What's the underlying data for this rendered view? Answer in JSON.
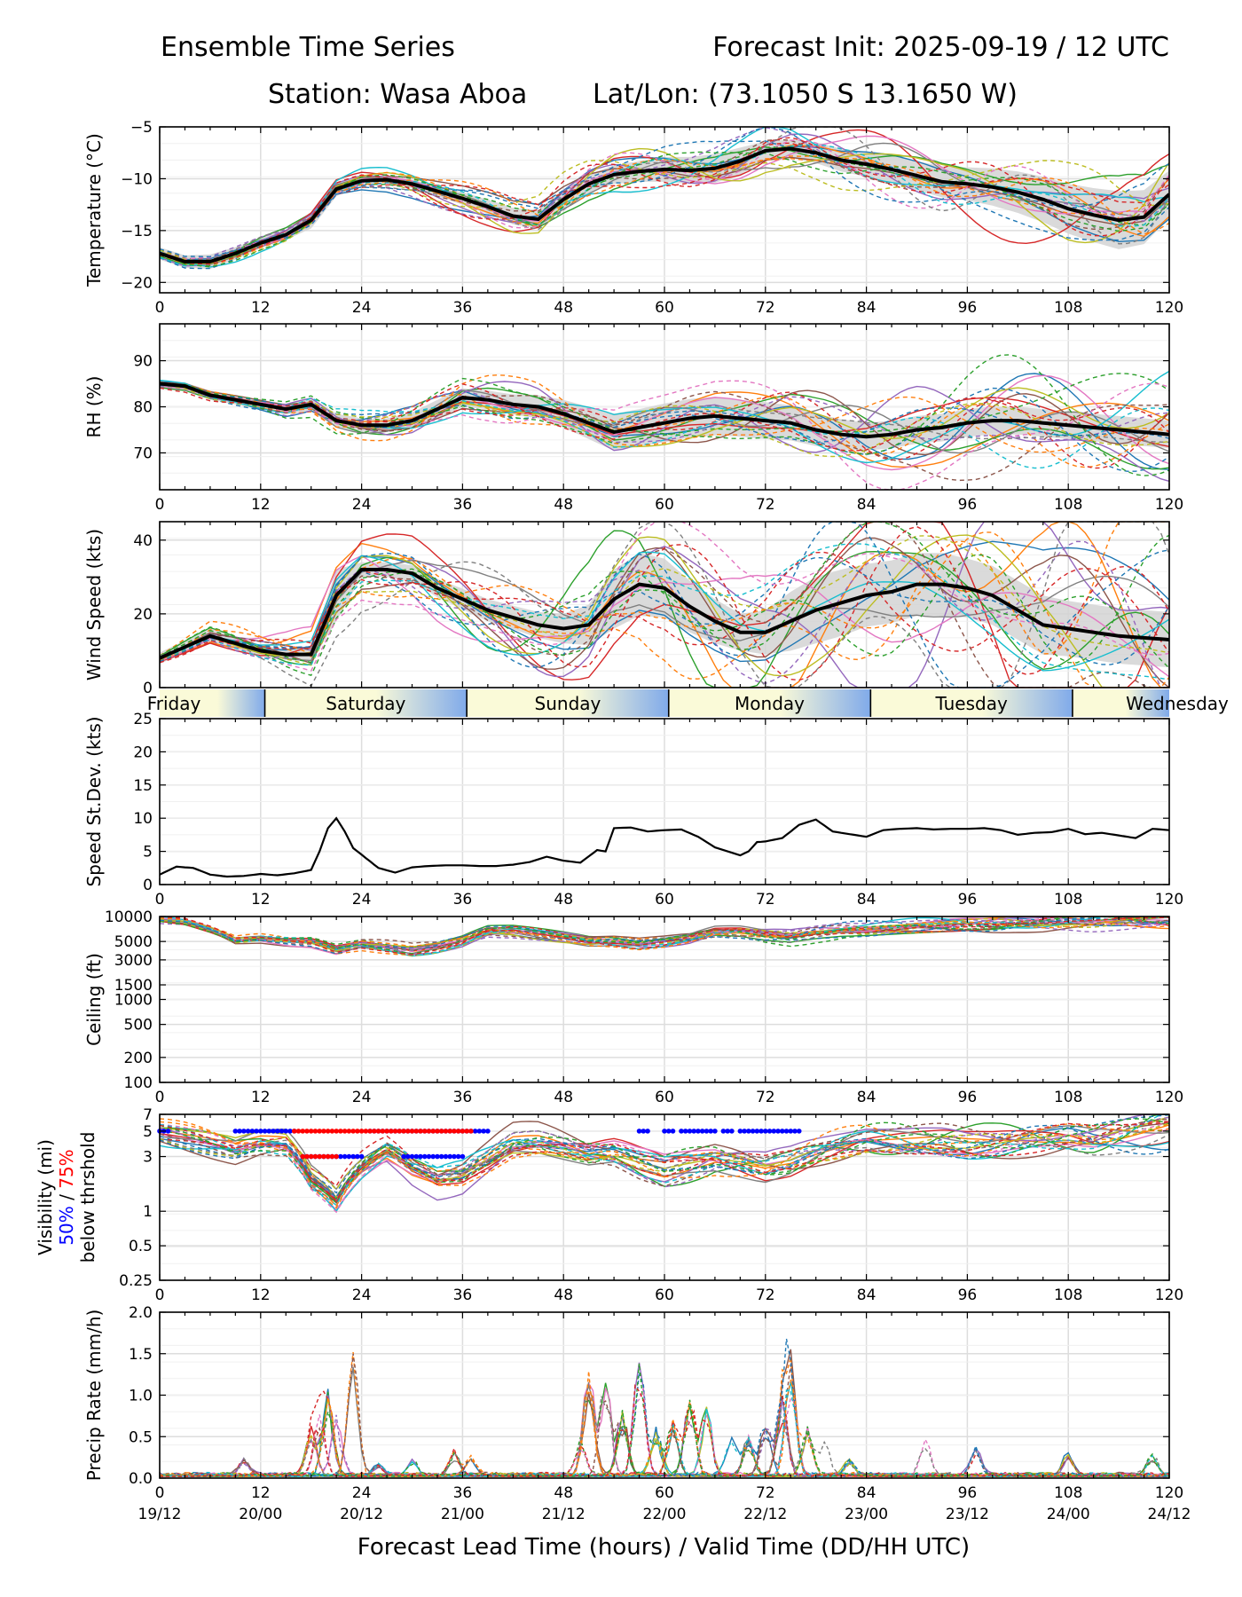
{
  "header": {
    "title_left": "Ensemble Time Series",
    "title_right": "Forecast Init: 2025-09-19 / 12 UTC",
    "station": "Station: Wasa Aboa",
    "latlon": "Lat/Lon: (73.1050 S 13.1650 W)"
  },
  "xaxis": {
    "lead_ticks": [
      "0",
      "12",
      "24",
      "36",
      "48",
      "60",
      "72",
      "84",
      "96",
      "108",
      "120"
    ],
    "valid_ticks": [
      "19/12",
      "20/00",
      "20/12",
      "21/00",
      "21/12",
      "22/00",
      "22/12",
      "23/00",
      "23/12",
      "24/00",
      "24/12"
    ],
    "label": "Forecast Lead Time (hours) / Valid Time (DD/HH UTC)"
  },
  "days": {
    "labels": [
      "Friday",
      "Saturday",
      "Sunday",
      "Monday",
      "Tuesday",
      "Wednesday"
    ],
    "boundaries_hours": [
      12.5,
      36.5,
      60.5,
      84.5,
      108.5
    ]
  },
  "colors": {
    "mean": "#000000",
    "spread": "#d3d3d3",
    "members": [
      "#1f77b4",
      "#ff7f0e",
      "#2ca02c",
      "#d62728",
      "#9467bd",
      "#8c564b",
      "#e377c2",
      "#7f7f7f",
      "#bcbd22",
      "#17becf"
    ],
    "vis50": "#0000ff",
    "vis75": "#ff0000",
    "day_light": "#fafad8",
    "day_dark": "#80aaea"
  },
  "chart_data": [
    {
      "id": "temperature",
      "type": "line",
      "ylabel": "Temperature (°C)",
      "ylim": [
        -21,
        -5
      ],
      "yticks": [
        -5,
        -10,
        -15,
        -20
      ],
      "scale": "linear",
      "x": [
        0,
        3,
        6,
        9,
        12,
        15,
        18,
        21,
        24,
        27,
        30,
        33,
        36,
        39,
        42,
        45,
        48,
        51,
        54,
        57,
        60,
        63,
        66,
        69,
        72,
        75,
        78,
        81,
        84,
        87,
        90,
        93,
        96,
        99,
        102,
        105,
        108,
        111,
        114,
        117,
        120
      ],
      "mean": [
        -17.2,
        -18.0,
        -18.0,
        -17.2,
        -16.2,
        -15.4,
        -14.0,
        -11.0,
        -10.2,
        -10.1,
        -10.5,
        -11.2,
        -11.9,
        -12.7,
        -13.6,
        -13.9,
        -12.0,
        -10.5,
        -9.6,
        -9.3,
        -9.1,
        -9.2,
        -9.0,
        -8.3,
        -7.3,
        -7.1,
        -7.5,
        -8.2,
        -8.6,
        -9.1,
        -9.7,
        -10.3,
        -10.5,
        -10.8,
        -11.3,
        -12.0,
        -12.9,
        -13.5,
        -14.0,
        -13.7,
        -11.5
      ],
      "spread_halfwidth": [
        0.6,
        0.6,
        0.7,
        0.6,
        0.5,
        0.5,
        0.8,
        0.7,
        0.3,
        0.3,
        0.4,
        0.5,
        0.6,
        0.7,
        0.8,
        0.9,
        1.0,
        0.9,
        0.9,
        1.0,
        1.2,
        1.3,
        1.4,
        1.3,
        0.9,
        0.9,
        1.0,
        1.1,
        1.2,
        1.3,
        1.4,
        1.5,
        1.6,
        1.8,
        2.0,
        2.2,
        2.4,
        2.6,
        2.8,
        2.6,
        2.3
      ],
      "member_noise": 1.6,
      "member_growth": 1.9,
      "show_mean": true
    },
    {
      "id": "rh",
      "type": "line",
      "ylabel": "RH (%)",
      "ylim": [
        62,
        98
      ],
      "yticks": [
        70,
        80,
        90
      ],
      "scale": "linear",
      "x": [
        0,
        3,
        6,
        9,
        12,
        15,
        18,
        21,
        24,
        27,
        30,
        33,
        36,
        39,
        42,
        45,
        48,
        51,
        54,
        57,
        60,
        63,
        66,
        69,
        72,
        75,
        78,
        81,
        84,
        87,
        90,
        93,
        96,
        99,
        102,
        105,
        108,
        111,
        114,
        117,
        120
      ],
      "mean": [
        85,
        84.5,
        82.5,
        81.5,
        80.5,
        79.5,
        80.5,
        77,
        76,
        76,
        77,
        79.5,
        82,
        81.5,
        80.5,
        80,
        78.5,
        76.5,
        74.5,
        75.5,
        76.5,
        77.5,
        78,
        77.5,
        77,
        76.5,
        75,
        74,
        73.5,
        74,
        75,
        75.5,
        76.5,
        77,
        77,
        76.5,
        76,
        75.5,
        75,
        74.5,
        74
      ],
      "spread_halfwidth": [
        0.8,
        0.8,
        1.0,
        1.0,
        1.0,
        1.2,
        1.5,
        1.5,
        1.5,
        1.5,
        1.8,
        2.0,
        2.0,
        2.0,
        2.2,
        2.5,
        3.0,
        3.5,
        4.0,
        4.0,
        4.2,
        4.2,
        4.2,
        4.0,
        4.0,
        3.8,
        3.5,
        3.3,
        3.0,
        3.0,
        3.0,
        3.0,
        3.0,
        3.0,
        3.0,
        3.0,
        3.0,
        3.0,
        3.0,
        3.0,
        3.0
      ],
      "member_noise": 3.0,
      "member_growth": 3.5,
      "show_mean": true
    },
    {
      "id": "wind",
      "type": "line",
      "ylabel": "Wind Speed (kts)",
      "ylim": [
        0,
        45
      ],
      "yticks": [
        0,
        20,
        40
      ],
      "scale": "linear",
      "x": [
        0,
        3,
        6,
        9,
        12,
        15,
        18,
        21,
        24,
        27,
        30,
        33,
        36,
        39,
        42,
        45,
        48,
        51,
        54,
        57,
        60,
        63,
        66,
        69,
        72,
        75,
        78,
        81,
        84,
        87,
        90,
        93,
        96,
        99,
        102,
        105,
        108,
        111,
        114,
        117,
        120
      ],
      "mean": [
        8,
        11,
        14,
        12,
        10,
        9,
        9,
        25,
        32,
        32,
        31,
        27,
        24,
        21,
        19,
        17,
        16,
        17,
        24,
        28,
        27,
        22,
        18,
        15,
        15,
        18,
        21,
        23,
        25,
        26,
        28,
        28,
        27,
        25,
        21,
        17,
        16,
        15,
        14,
        13.5,
        13
      ],
      "spread_halfwidth": [
        1.5,
        1.8,
        2.0,
        1.8,
        1.5,
        1.5,
        2.0,
        7.0,
        2.0,
        2.0,
        2.2,
        2.5,
        2.8,
        3.0,
        3.2,
        3.5,
        4.0,
        5.5,
        8.0,
        8.5,
        8.0,
        7.0,
        6.0,
        5.0,
        6.0,
        8.0,
        9.0,
        9.0,
        8.5,
        8.5,
        8.5,
        8.5,
        8.0,
        8.0,
        8.0,
        8.0,
        7.5,
        7.5,
        7.5,
        7.5,
        7.5
      ],
      "member_noise": 5.0,
      "member_growth": 6.0,
      "show_mean": true
    },
    {
      "id": "wind_sd",
      "type": "line",
      "ylabel": "Speed St.Dev. (kts)",
      "ylim": [
        0,
        25
      ],
      "yticks": [
        0,
        5,
        10,
        15,
        20,
        25
      ],
      "scale": "linear",
      "x": [
        0,
        2,
        4,
        6,
        8,
        10,
        12,
        14,
        16,
        18,
        19,
        20,
        21,
        22,
        23,
        24,
        26,
        28,
        30,
        32,
        34,
        36,
        38,
        40,
        42,
        44,
        46,
        48,
        50,
        52,
        53,
        54,
        56,
        58,
        60,
        62,
        64,
        66,
        68,
        69,
        70,
        71,
        72,
        74,
        76,
        78,
        80,
        82,
        84,
        86,
        88,
        90,
        92,
        94,
        96,
        98,
        100,
        102,
        104,
        106,
        108,
        110,
        112,
        114,
        116,
        118,
        120
      ],
      "mean": [
        1.5,
        2.7,
        2.5,
        1.5,
        1.2,
        1.3,
        1.6,
        1.4,
        1.7,
        2.2,
        5.0,
        8.5,
        10.0,
        8.0,
        5.5,
        4.5,
        2.5,
        1.8,
        2.6,
        2.8,
        2.9,
        2.9,
        2.8,
        2.8,
        3.0,
        3.4,
        4.2,
        3.6,
        3.3,
        5.2,
        5.0,
        8.5,
        8.6,
        8.0,
        8.2,
        8.3,
        7.2,
        5.6,
        4.8,
        4.4,
        5.0,
        6.4,
        6.5,
        7.0,
        9.0,
        9.8,
        8.0,
        7.6,
        7.2,
        8.2,
        8.4,
        8.5,
        8.3,
        8.4,
        8.4,
        8.5,
        8.2,
        7.5,
        7.8,
        7.9,
        8.4,
        7.6,
        7.8,
        7.4,
        7.0,
        8.4,
        8.2
      ],
      "show_members": false,
      "show_mean": true
    },
    {
      "id": "ceiling",
      "type": "line",
      "ylabel": "Ceiling (ft)",
      "ylim": [
        100,
        10000
      ],
      "yticks": [
        100,
        200,
        500,
        1000,
        1500,
        3000,
        5000,
        10000
      ],
      "scale": "log",
      "x": [
        0,
        3,
        6,
        9,
        12,
        15,
        18,
        21,
        24,
        27,
        30,
        33,
        36,
        39,
        42,
        45,
        48,
        51,
        54,
        57,
        60,
        63,
        66,
        69,
        72,
        75,
        78,
        81,
        84,
        87,
        90,
        93,
        96,
        99,
        102,
        105,
        108,
        111,
        114,
        117,
        120
      ],
      "mean": [
        9000,
        8500,
        7000,
        5200,
        5500,
        5200,
        5000,
        4000,
        4600,
        4200,
        3800,
        4200,
        5000,
        6500,
        6500,
        6000,
        5500,
        5000,
        5000,
        4700,
        5000,
        5500,
        6500,
        6500,
        6000,
        5800,
        6500,
        7000,
        7200,
        7500,
        7800,
        8000,
        8200,
        8200,
        8500,
        8500,
        8800,
        8800,
        9000,
        9000,
        9000
      ],
      "member_noise": 0.45,
      "member_growth": 0.25,
      "show_mean": false
    },
    {
      "id": "visibility",
      "type": "line",
      "ylabel_line1": "Visibility (mi)",
      "ylabel_50": "50%",
      "ylabel_sep": " / ",
      "ylabel_75": "75%",
      "ylabel_line3": "below thrshold",
      "ylim": [
        0.25,
        7
      ],
      "yticks": [
        0.25,
        0.5,
        1,
        3,
        5,
        7
      ],
      "scale": "log",
      "x": [
        0,
        3,
        6,
        9,
        12,
        15,
        18,
        21,
        24,
        27,
        30,
        33,
        36,
        39,
        42,
        45,
        48,
        51,
        54,
        57,
        60,
        63,
        66,
        69,
        72,
        75,
        78,
        81,
        84,
        87,
        90,
        93,
        96,
        99,
        102,
        105,
        108,
        111,
        114,
        117,
        120
      ],
      "mean": [
        5,
        4.5,
        4,
        3.5,
        4,
        4,
        2,
        1.3,
        2.5,
        3.5,
        2.5,
        2,
        2.2,
        3,
        4,
        4,
        3.5,
        3,
        3,
        2.5,
        2.2,
        2.5,
        2.8,
        2.6,
        2.3,
        2.5,
        3,
        3.5,
        4,
        4,
        4,
        4,
        3.8,
        3.8,
        4,
        4.2,
        4.5,
        4.5,
        5,
        5.5,
        6
      ],
      "member_noise": 0.9,
      "member_growth": 0.2,
      "show_mean": false,
      "below50_t5": [
        [
          0,
          1
        ],
        [
          9,
          16
        ],
        [
          25,
          39
        ],
        [
          57,
          58
        ],
        [
          60,
          61
        ],
        [
          62,
          66
        ],
        [
          67,
          68
        ],
        [
          69,
          76
        ]
      ],
      "below75_t5": [
        [
          16,
          37
        ]
      ],
      "below50_t3": [
        [
          17,
          24
        ],
        [
          29,
          36
        ]
      ],
      "below75_t3": [
        [
          17,
          21
        ]
      ]
    },
    {
      "id": "precip",
      "type": "line",
      "ylabel": "Precip Rate (mm/h)",
      "ylim": [
        0,
        2.0
      ],
      "yticks": [
        0.0,
        0.5,
        1.0,
        1.5,
        2.0
      ],
      "scale": "linear",
      "show_members": true,
      "show_mean": false,
      "bursts": [
        [
          10,
          0.2
        ],
        [
          18,
          0.6
        ],
        [
          19,
          0.8
        ],
        [
          20,
          1.05
        ],
        [
          21,
          0.75
        ],
        [
          23,
          1.5
        ],
        [
          26,
          0.15
        ],
        [
          30,
          0.2
        ],
        [
          35,
          0.3
        ],
        [
          37,
          0.25
        ],
        [
          50,
          0.45
        ],
        [
          51,
          1.35
        ],
        [
          53,
          1.3
        ],
        [
          55,
          0.8
        ],
        [
          57,
          1.5
        ],
        [
          59,
          0.6
        ],
        [
          61,
          0.7
        ],
        [
          63,
          1.0
        ],
        [
          65,
          0.9
        ],
        [
          68,
          0.6
        ],
        [
          70,
          0.5
        ],
        [
          72,
          0.7
        ],
        [
          74,
          1.0
        ],
        [
          75,
          1.4
        ],
        [
          77,
          0.6
        ],
        [
          79,
          0.5
        ],
        [
          82,
          0.2
        ],
        [
          91,
          0.5
        ],
        [
          97,
          0.35
        ],
        [
          108,
          0.3
        ],
        [
          118,
          0.25
        ]
      ]
    }
  ]
}
